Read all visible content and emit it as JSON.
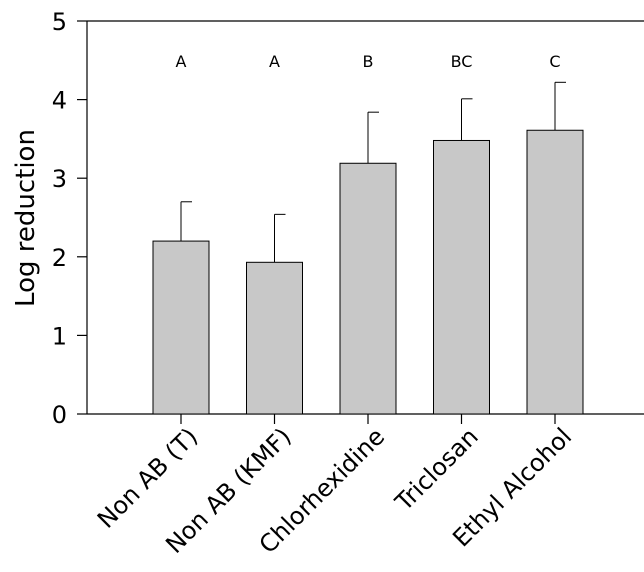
{
  "chart_data": {
    "type": "bar",
    "categories": [
      "Non AB (T)",
      "Non AB (KMF)",
      "Chlorhexidine",
      "Triclosan",
      "Ethyl Alcohol"
    ],
    "values": [
      2.2,
      1.93,
      3.19,
      3.48,
      3.61
    ],
    "errors": [
      0.5,
      0.61,
      0.65,
      0.53,
      0.61
    ],
    "group_letters": [
      "A",
      "A",
      "B",
      "BC",
      "C"
    ],
    "title": "",
    "xlabel": "",
    "ylabel": "Log reduction",
    "ylim": [
      0,
      5
    ],
    "yticks": [
      "0",
      "1",
      "2",
      "3",
      "4",
      "5"
    ],
    "grid": false,
    "bar_color": "#c8c8c8",
    "edge_color": "#000000"
  }
}
